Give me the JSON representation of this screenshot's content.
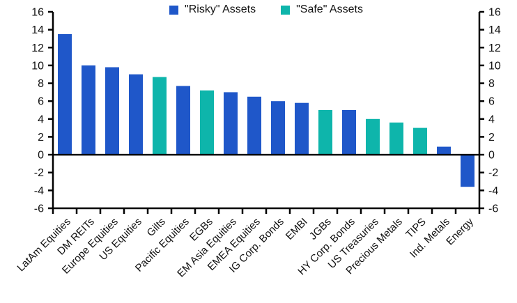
{
  "chart_data": {
    "type": "bar",
    "title": "",
    "xlabel": "",
    "ylabel": "",
    "categories": [
      "LatAm Equities",
      "DM REITs",
      "Europe Equities",
      "US Equities",
      "Gilts",
      "Pacific Equities",
      "EGBs",
      "EM Asia Equities",
      "EMEA Equities",
      "IG Corp. Bonds",
      "EMBI",
      "JGBs",
      "HY Corp. Bonds",
      "US Treasuries",
      "Precious Metals",
      "TIPS",
      "Ind. Metals",
      "Energy"
    ],
    "values": [
      13.5,
      10.0,
      9.8,
      9.0,
      8.7,
      7.7,
      7.2,
      7.0,
      6.5,
      6.0,
      5.8,
      5.0,
      5.0,
      4.0,
      3.6,
      3.0,
      0.9,
      -3.6
    ],
    "groups": [
      "risky",
      "risky",
      "risky",
      "risky",
      "safe",
      "risky",
      "safe",
      "risky",
      "risky",
      "risky",
      "risky",
      "safe",
      "risky",
      "safe",
      "safe",
      "safe",
      "risky",
      "risky"
    ],
    "group_colors": {
      "risky": "#1f57c9",
      "safe": "#0eb5ab"
    },
    "legend": [
      {
        "label": "\"Risky\" Assets",
        "group": "risky"
      },
      {
        "label": "\"Safe\" Assets",
        "group": "safe"
      }
    ],
    "legend_position": "top-center",
    "ylim": [
      -6,
      16
    ],
    "yticks": [
      16,
      14,
      12,
      10,
      8,
      6,
      4,
      2,
      0,
      -2,
      -4,
      -6
    ],
    "axis_label_sides": [
      "left",
      "right"
    ],
    "grid": false,
    "axis_color": "#000000",
    "x_label_rotation_deg": 45
  }
}
